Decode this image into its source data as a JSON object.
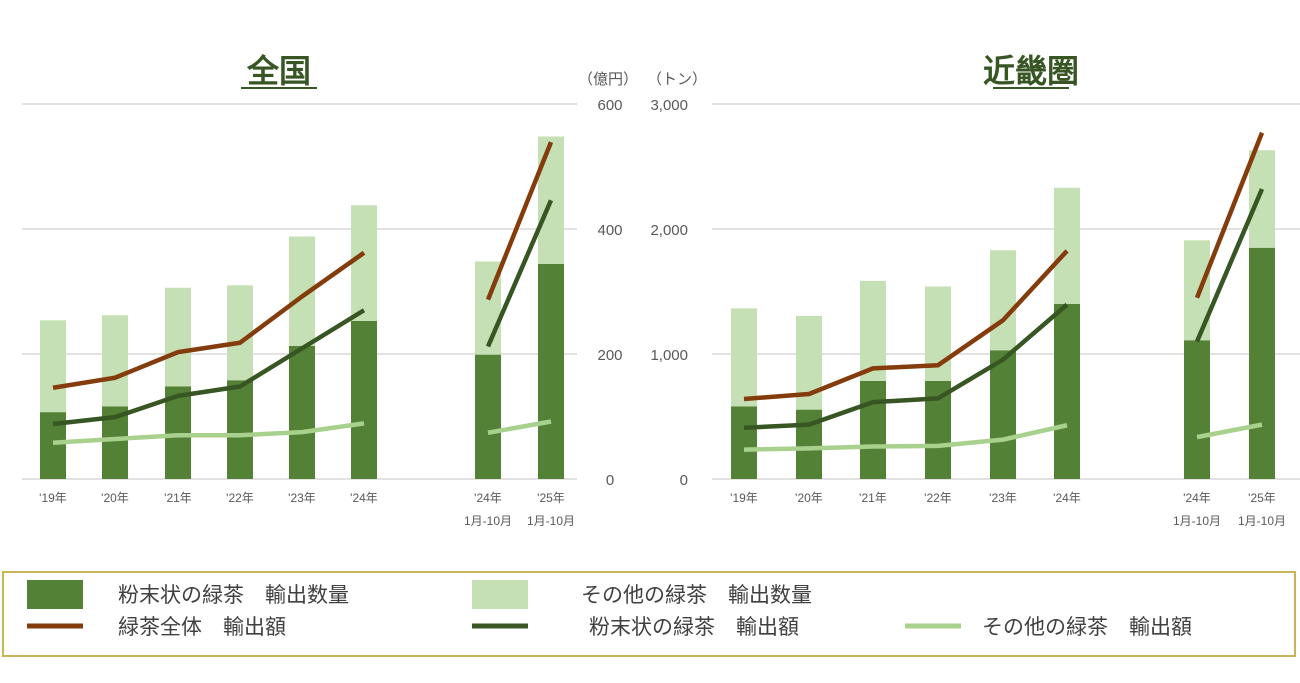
{
  "units": {
    "money": "（億円）",
    "volume": "（トン）",
    "money_partial": "（"
  },
  "right_axis_ticks": [
    {
      "value": 600,
      "label": "600"
    },
    {
      "value": 400,
      "label": "400"
    },
    {
      "value": 200,
      "label": "200"
    },
    {
      "value": 0,
      "label": "0"
    }
  ],
  "x_labels": [
    {
      "line1": "'19年",
      "line2": ""
    },
    {
      "line1": "'20年",
      "line2": ""
    },
    {
      "line1": "'21年",
      "line2": ""
    },
    {
      "line1": "'22年",
      "line2": ""
    },
    {
      "line1": "'23年",
      "line2": ""
    },
    {
      "line1": "'24年",
      "line2": ""
    },
    {
      "line1": "'24年",
      "line2": "1月-10月"
    },
    {
      "line1": "'25年",
      "line2": "1月-10月"
    }
  ],
  "colors": {
    "powder_volume": "#538135",
    "other_volume": "#c5e0b4",
    "total_value": "#843c0c",
    "powder_value": "#375623",
    "other_value": "#a9d18e",
    "grid": "#d9d9d9",
    "title": "#375623",
    "legend_border": "#c9b458"
  },
  "legend": [
    {
      "key": "powder_volume",
      "label": "粉末状の緑茶　輸出数量",
      "kind": "box"
    },
    {
      "key": "other_volume",
      "label": "その他の緑茶　輸出数量",
      "kind": "box"
    },
    {
      "key": "total_value",
      "label": "緑茶全体　輸出額",
      "kind": "line"
    },
    {
      "key": "powder_value",
      "label": "粉末状の緑茶　輸出額",
      "kind": "line"
    },
    {
      "key": "other_value",
      "label": "その他の緑茶　輸出額",
      "kind": "line"
    }
  ],
  "chart_data": [
    {
      "type": "bar",
      "title": "全国",
      "categories": [
        "'19年",
        "'20年",
        "'21年",
        "'22年",
        "'23年",
        "'24年",
        "'24年 1月-10月",
        "'25年 1月-10月"
      ],
      "y_volume_ticks": [
        0,
        1000,
        2000,
        3000
      ],
      "y_volume_tick_labels": [
        "0",
        "1,000",
        "2,000",
        "3,000"
      ],
      "y_value_range": [
        0,
        600
      ],
      "bar_series": [
        {
          "name": "粉末状の緑茶　輸出数量",
          "values": [
            535,
            580,
            740,
            790,
            1065,
            1265,
            995,
            1720
          ]
        },
        {
          "name": "その他の緑茶　輸出数量",
          "values": [
            735,
            730,
            790,
            760,
            875,
            925,
            745,
            1020
          ]
        }
      ],
      "line_series": [
        {
          "name": "緑茶全体　輸出額",
          "values": [
            146,
            162,
            203,
            218,
            292,
            362,
            287,
            539
          ],
          "break_after": 5
        },
        {
          "name": "粉末状の緑茶　輸出額",
          "values": [
            88,
            99,
            133,
            148,
            209,
            270,
            212,
            446
          ],
          "break_after": 5
        },
        {
          "name": "その他の緑茶　輸出額",
          "values": [
            58,
            64,
            70,
            70,
            75,
            89,
            74,
            92
          ],
          "break_after": 5
        }
      ]
    },
    {
      "type": "bar",
      "title": "近畿圏",
      "categories": [
        "'19年",
        "'20年",
        "'21年",
        "'22年",
        "'23年",
        "'24年",
        "'24年 1月-10月",
        "'25年 1月-10月"
      ],
      "y_volume_ticks": [
        0,
        1000,
        2000,
        3000
      ],
      "y_volume_tick_labels": [
        "0",
        "1,000",
        "2,000",
        "3,000"
      ],
      "y_value_range": [
        0,
        600
      ],
      "bar_series": [
        {
          "name": "粉末状の緑茶　輸出数量",
          "values": [
            580,
            555,
            785,
            785,
            1030,
            1400,
            1110,
            1850
          ]
        },
        {
          "name": "その他の緑茶　輸出数量",
          "values": [
            785,
            750,
            800,
            755,
            800,
            930,
            800,
            780
          ]
        }
      ],
      "line_series": [
        {
          "name": "緑茶全体　輸出額",
          "values": [
            128,
            136,
            177,
            182,
            254,
            365,
            290,
            554
          ],
          "break_after": 5
        },
        {
          "name": "粉末状の緑茶　輸出額",
          "values": [
            82,
            87,
            123,
            129,
            191,
            279,
            220,
            464
          ],
          "break_after": 5
        },
        {
          "name": "その他の緑茶　輸出額",
          "values": [
            47,
            49,
            52,
            53,
            63,
            86,
            67,
            87
          ],
          "break_after": 5
        }
      ]
    }
  ]
}
